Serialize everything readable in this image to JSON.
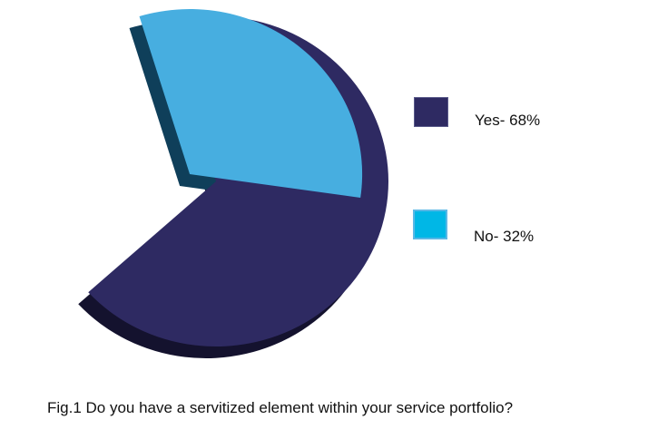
{
  "chart_data": {
    "type": "pie",
    "title": "",
    "caption": "Fig.1 Do you have a servitized element within your service portfolio?",
    "slices": [
      {
        "label": "Yes- 68%",
        "name": "Yes",
        "value": 68,
        "color": "#2e2a62",
        "shadow": "#14122e",
        "legend_border": "#5a5a8a"
      },
      {
        "label": "No- 32%",
        "name": "No",
        "value": 32,
        "color": "#47aee0",
        "shadow": "#0f3f5a",
        "legend_color": "#00b7e6",
        "legend_border": "#5ab8e6"
      }
    ],
    "legend_position": "right"
  }
}
